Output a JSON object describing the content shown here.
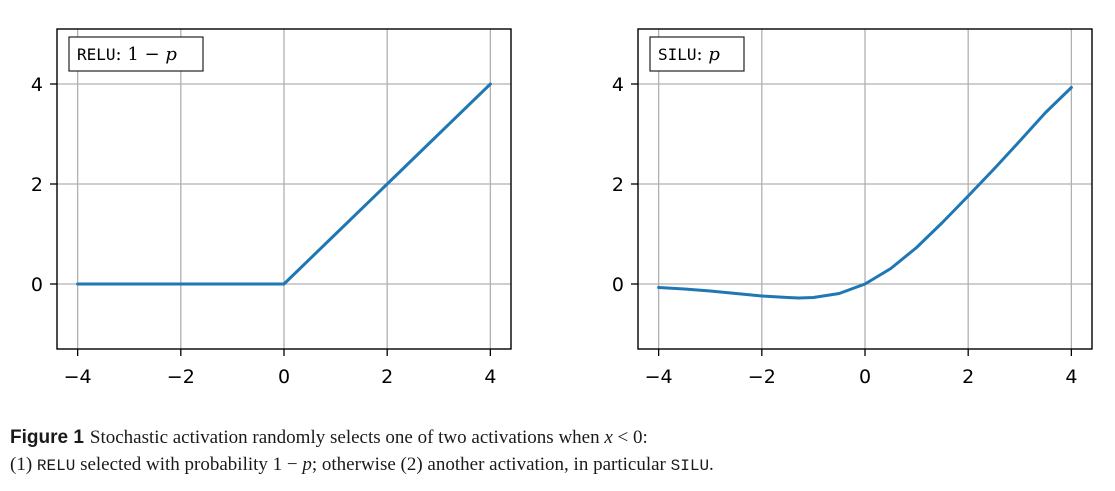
{
  "chart_data": [
    {
      "type": "line",
      "legend_label": {
        "name": "RELU",
        "sep": ":",
        "expr_num": "1 − ",
        "expr_var": "p"
      },
      "legend_position": "upper-left",
      "xlim": [
        -4.4,
        4.4
      ],
      "ylim": [
        -1.3,
        5.1
      ],
      "xticks": [
        -4,
        -2,
        0,
        2,
        4
      ],
      "xtick_labels": [
        "−4",
        "−2",
        "0",
        "2",
        "4"
      ],
      "yticks": [
        0,
        2,
        4
      ],
      "ytick_labels": [
        "0",
        "2",
        "4"
      ],
      "grid": true,
      "series": [
        {
          "color": "#1f77b4",
          "x": [
            -4,
            -3,
            -2,
            -1,
            0,
            1,
            2,
            3,
            4
          ],
          "y": [
            0,
            0,
            0,
            0,
            0,
            1,
            2,
            3,
            4
          ]
        }
      ]
    },
    {
      "type": "line",
      "legend_label": {
        "name": "SILU",
        "sep": ":",
        "expr_num": "",
        "expr_var": "p"
      },
      "legend_position": "upper-left",
      "xlim": [
        -4.4,
        4.4
      ],
      "ylim": [
        -1.3,
        5.1
      ],
      "xticks": [
        -4,
        -2,
        0,
        2,
        4
      ],
      "xtick_labels": [
        "−4",
        "−2",
        "0",
        "2",
        "4"
      ],
      "yticks": [
        0,
        2,
        4
      ],
      "ytick_labels": [
        "0",
        "2",
        "4"
      ],
      "grid": true,
      "series": [
        {
          "color": "#1f77b4",
          "x": [
            -4,
            -3.5,
            -3,
            -2.5,
            -2,
            -1.5,
            -1.28,
            -1,
            -0.5,
            0,
            0.5,
            1,
            1.5,
            2,
            2.5,
            3,
            3.5,
            4
          ],
          "y": [
            -0.07,
            -0.1,
            -0.14,
            -0.19,
            -0.24,
            -0.27,
            -0.28,
            -0.27,
            -0.19,
            0,
            0.31,
            0.73,
            1.23,
            1.76,
            2.3,
            2.86,
            3.43,
            3.93
          ]
        }
      ]
    }
  ],
  "caption": {
    "label": "Figure 1",
    "line1_text": "Stochastic activation randomly selects one of two activations when ",
    "line1_math_var": "x",
    "line1_math_rest": " < 0:",
    "line2_a": "(1) ",
    "line2_relu": "RELU",
    "line2_b": " selected with probability ",
    "line2_math": "1 − ",
    "line2_math_var": "p",
    "line2_c": "; otherwise (2) another activation, in particular ",
    "line2_silu": "SILU",
    "line2_d": "."
  }
}
